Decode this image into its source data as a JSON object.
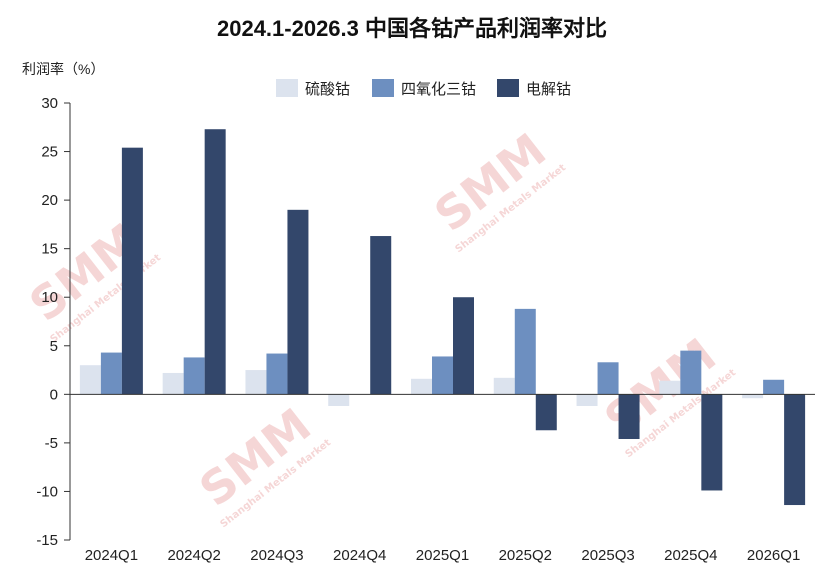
{
  "chart_data": {
    "type": "bar",
    "title": "2024.1-2026.3 中国各钴产品利润率对比",
    "ylabel": "利润率（%）",
    "xlabel": "",
    "ylim": [
      -15,
      30
    ],
    "yticks": [
      30,
      25,
      20,
      15,
      10,
      5,
      0,
      -5,
      -10,
      -15
    ],
    "grid": false,
    "legend_position": "top",
    "categories": [
      "2024Q1",
      "2024Q2",
      "2024Q3",
      "2024Q4",
      "2025Q1",
      "2025Q2",
      "2025Q3",
      "2025Q4",
      "2026Q1"
    ],
    "series": [
      {
        "name": "硫酸钴",
        "color": "#dce3ee",
        "values": [
          3.0,
          2.2,
          2.5,
          -1.2,
          1.6,
          1.7,
          -1.2,
          1.4,
          -0.4
        ]
      },
      {
        "name": "四氧化三钴",
        "color": "#6d8fc0",
        "values": [
          4.3,
          3.8,
          4.2,
          0.0,
          3.9,
          8.8,
          3.3,
          4.5,
          1.5
        ]
      },
      {
        "name": "电解钴",
        "color": "#33476b",
        "values": [
          25.4,
          27.3,
          19.0,
          16.3,
          10.0,
          -3.7,
          -4.6,
          -9.9,
          -11.4
        ]
      }
    ]
  },
  "watermark": {
    "logo": "SMM",
    "tagline": "Shanghai Metals Market",
    "color": "#e07a7a"
  }
}
